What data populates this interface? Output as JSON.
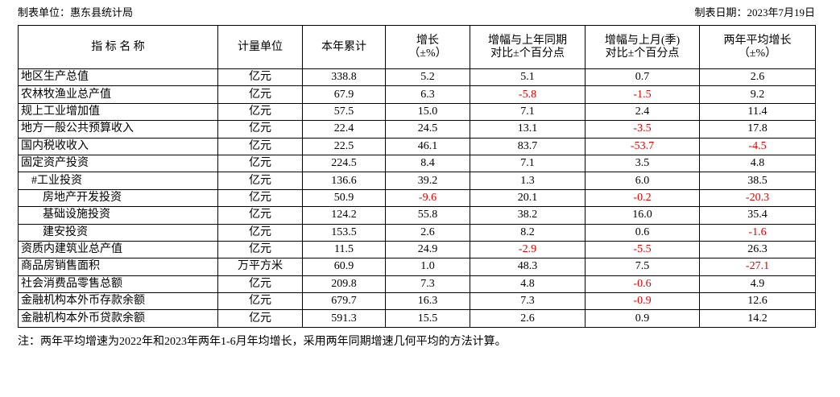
{
  "header": {
    "unit": "制表单位：惠东县统计局",
    "date": "制表日期：2023年7月19日"
  },
  "table": {
    "columns": [
      "指 标 名 称",
      "计量单位",
      "本年累计",
      "增长\n（±%）",
      "增幅与上年同期\n对比±个百分点",
      "增幅与上月(季)\n对比±个百分点",
      "两年平均增长\n（±%）"
    ],
    "rows": [
      [
        "地区生产总值",
        "亿元",
        "338.8",
        "5.2",
        "5.1",
        "0.7",
        "2.6"
      ],
      [
        "农林牧渔业总产值",
        "亿元",
        "67.9",
        "6.3",
        "-5.8",
        "-1.5",
        "9.2"
      ],
      [
        "规上工业增加值",
        "亿元",
        "57.5",
        "15.0",
        "7.1",
        "2.4",
        "11.4"
      ],
      [
        "地方一般公共预算收入",
        "亿元",
        "22.4",
        "24.5",
        "13.1",
        "-3.5",
        "17.8"
      ],
      [
        "国内税收收入",
        "亿元",
        "22.5",
        "46.1",
        "83.7",
        "-53.7",
        "-4.5"
      ],
      [
        "固定资产投资",
        "亿元",
        "224.5",
        "8.4",
        "7.1",
        "3.5",
        "4.8"
      ],
      [
        "#工业投资",
        "亿元",
        "136.6",
        "39.2",
        "1.3",
        "6.0",
        "38.5"
      ],
      [
        "房地产开发投资",
        "亿元",
        "50.9",
        "-9.6",
        "20.1",
        "-0.2",
        "-20.3"
      ],
      [
        "基础设施投资",
        "亿元",
        "124.2",
        "55.8",
        "38.2",
        "16.0",
        "35.4"
      ],
      [
        "建安投资",
        "亿元",
        "153.5",
        "2.6",
        "8.2",
        "0.6",
        "-1.6"
      ],
      [
        "资质内建筑业总产值",
        "亿元",
        "11.5",
        "24.9",
        "-2.9",
        "-5.5",
        "26.3"
      ],
      [
        "商品房销售面积",
        "万平方米",
        "60.9",
        "1.0",
        "48.3",
        "7.5",
        "-27.1"
      ],
      [
        "社会消费品零售总额",
        "亿元",
        "209.8",
        "7.3",
        "4.8",
        "-0.6",
        "4.9"
      ],
      [
        "金融机构本外币存款余额",
        "亿元",
        "679.7",
        "16.3",
        "7.3",
        "-0.9",
        "12.6"
      ],
      [
        "金融机构本外币贷款余额",
        "亿元",
        "591.3",
        "15.5",
        "2.6",
        "0.9",
        "14.2"
      ]
    ]
  },
  "footnote": "注：两年平均增速为2022年和2023年两年1-6月年均增长，采用两年同期增速几何平均的方法计算。"
}
